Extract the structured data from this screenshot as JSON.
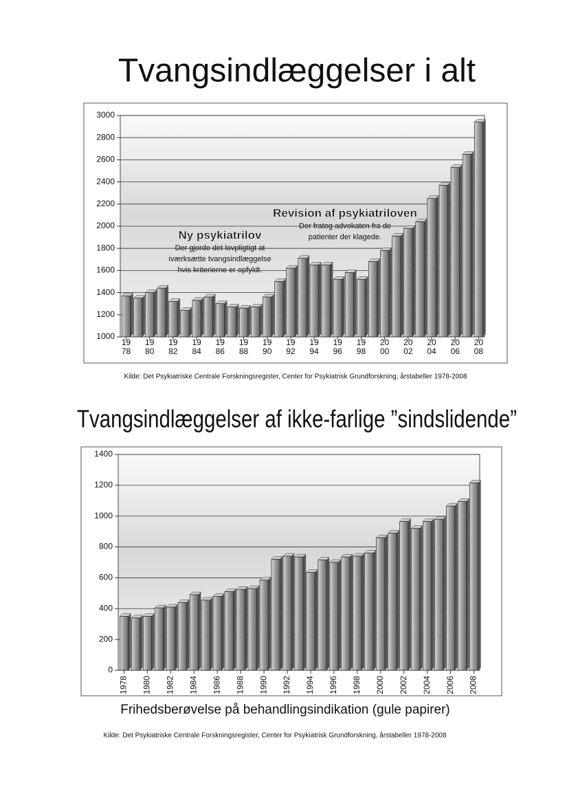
{
  "chart_data": [
    {
      "type": "bar",
      "title": "Tvangsindlæggelser i alt",
      "source": "Kilde: Det Psykiatriske Centrale Forskningsregister, Center for Psykiatrisk Grundforskning, årstabeller 1978-2008",
      "categories": [
        "19\n78",
        null,
        "19\n80",
        null,
        "19\n82",
        null,
        "19\n84",
        null,
        "19\n86",
        null,
        "19\n88",
        null,
        "19\n90",
        null,
        "19\n92",
        null,
        "19\n94",
        null,
        "19\n96",
        null,
        "19\n98",
        null,
        "20\n00",
        null,
        "20\n02",
        null,
        "20\n04",
        null,
        "20\n06",
        null,
        "20\n08"
      ],
      "values": [
        1370,
        1350,
        1400,
        1440,
        1320,
        1240,
        1330,
        1360,
        1300,
        1270,
        1260,
        1270,
        1360,
        1500,
        1620,
        1710,
        1650,
        1650,
        1520,
        1580,
        1520,
        1680,
        1780,
        1910,
        1980,
        2040,
        2250,
        2370,
        2530,
        2650,
        2940
      ],
      "color": "#a8a8a8",
      "ylim": [
        1000,
        3000
      ],
      "yticks": [
        1000,
        1200,
        1400,
        1600,
        1800,
        2000,
        2200,
        2400,
        2600,
        2800,
        3000
      ],
      "grid": true,
      "annotations": [
        {
          "title": "Ny psykiatrilov",
          "lines": [
            "Der gjorde det lovpligtigt at",
            "iværksætte tvangsindlæggelse",
            "hvis kriterierne er opfyldt."
          ]
        },
        {
          "title": "Revision af psykiatriloven",
          "lines": [
            "Der fratog advokaten fra de",
            "patienter der klagede."
          ]
        }
      ]
    },
    {
      "type": "bar",
      "title": "Tvangsindlæggelser af ikke-farlige ”sindslidende”",
      "subtitle": "Frihedsberøvelse på behandlingsindikation (gule papirer)",
      "source": "Kilde: Det Psykiatriske Centrale Forskningsregister, Center for Psykiatrisk Grundforskning, årstabeller 1978-2008",
      "categories": [
        "1978",
        null,
        "1980",
        null,
        "1982",
        null,
        "1984",
        null,
        "1986",
        null,
        "1988",
        null,
        "1990",
        null,
        "1992",
        null,
        "1994",
        null,
        "1996",
        null,
        "1998",
        null,
        "2000",
        null,
        "2002",
        null,
        "2004",
        null,
        "2006",
        null,
        "2008"
      ],
      "values": [
        350,
        340,
        350,
        405,
        410,
        440,
        490,
        455,
        480,
        510,
        525,
        530,
        585,
        720,
        740,
        735,
        635,
        715,
        700,
        735,
        740,
        760,
        860,
        890,
        965,
        920,
        965,
        980,
        1065,
        1095,
        1215
      ],
      "color": "#a8a8a8",
      "ylim": [
        0,
        1400
      ],
      "yticks": [
        0,
        200,
        400,
        600,
        800,
        1000,
        1200,
        1400
      ],
      "grid": true
    }
  ]
}
